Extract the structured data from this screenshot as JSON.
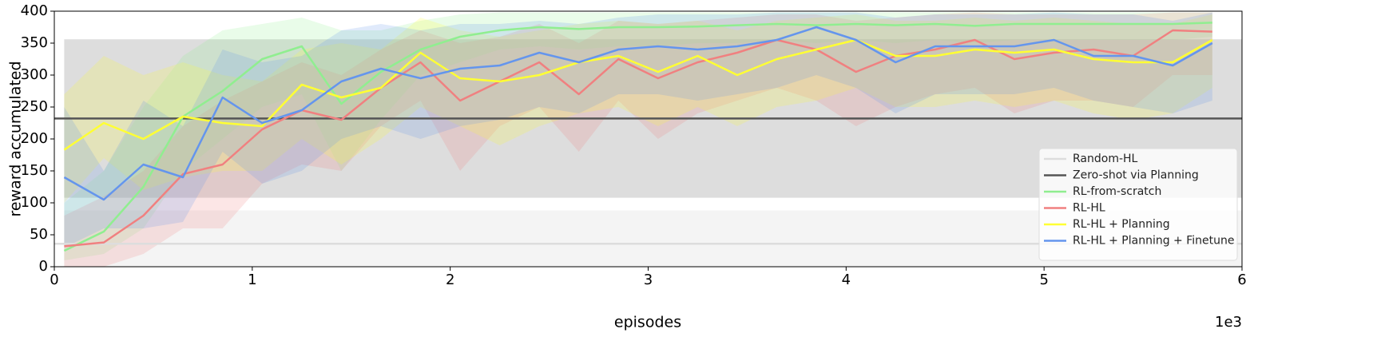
{
  "chart_data": {
    "type": "line",
    "xlabel": "episodes",
    "ylabel": "reward accumulated",
    "x_offset_label": "1e3",
    "xlim": [
      0,
      6
    ],
    "xticks": [
      0,
      1,
      2,
      3,
      4,
      5,
      6
    ],
    "ylim": [
      0,
      400
    ],
    "yticks": [
      0,
      50,
      100,
      150,
      200,
      250,
      300,
      350,
      400
    ],
    "legend": "lower right",
    "x": [
      0.05,
      0.25,
      0.45,
      0.65,
      0.85,
      1.05,
      1.25,
      1.45,
      1.65,
      1.85,
      2.05,
      2.25,
      2.45,
      2.65,
      2.85,
      3.05,
      3.25,
      3.45,
      3.65,
      3.85,
      4.05,
      4.25,
      4.45,
      4.65,
      4.85,
      5.05,
      5.25,
      5.45,
      5.65,
      5.85
    ],
    "series": [
      {
        "name": "Random-HL",
        "color": "#dddddd",
        "band_color": "#e6e6e6",
        "value": 36,
        "lower": 0,
        "upper": 88
      },
      {
        "name": "Zero-shot via Planning",
        "color": "#555555",
        "band_color": "#b4b4b4",
        "value": 232,
        "lower": 108,
        "upper": 356
      },
      {
        "name": "RL-from-scratch",
        "color": "#90ee90",
        "values": [
          25,
          55,
          125,
          235,
          275,
          325,
          345,
          255,
          305,
          340,
          360,
          370,
          375,
          372,
          375,
          375,
          376,
          378,
          380,
          378,
          380,
          378,
          380,
          377,
          380,
          380,
          380,
          380,
          380,
          382
        ],
        "lower": [
          10,
          20,
          60,
          150,
          200,
          250,
          270,
          150,
          230,
          300,
          320,
          340,
          345,
          340,
          345,
          345,
          350,
          350,
          355,
          350,
          355,
          350,
          355,
          350,
          355,
          355,
          355,
          355,
          355,
          360
        ],
        "upper": [
          100,
          150,
          250,
          330,
          370,
          380,
          390,
          370,
          370,
          385,
          395,
          398,
          398,
          398,
          398,
          398,
          398,
          398,
          398,
          398,
          398,
          398,
          398,
          398,
          398,
          398,
          398,
          398,
          398,
          398
        ]
      },
      {
        "name": "RL-HL",
        "color": "#f08080",
        "values": [
          32,
          38,
          80,
          145,
          160,
          215,
          245,
          230,
          280,
          320,
          260,
          290,
          320,
          270,
          325,
          295,
          320,
          335,
          355,
          340,
          305,
          330,
          340,
          355,
          325,
          335,
          340,
          330,
          370,
          368
        ],
        "lower": [
          0,
          0,
          20,
          60,
          60,
          130,
          160,
          150,
          220,
          260,
          150,
          220,
          250,
          180,
          260,
          200,
          240,
          260,
          280,
          260,
          220,
          250,
          270,
          280,
          240,
          260,
          260,
          250,
          300,
          300
        ],
        "upper": [
          80,
          110,
          150,
          220,
          260,
          290,
          320,
          300,
          340,
          370,
          350,
          360,
          380,
          350,
          385,
          380,
          385,
          390,
          395,
          395,
          385,
          390,
          395,
          398,
          395,
          395,
          395,
          395,
          398,
          398
        ]
      },
      {
        "name": "RL-HL + Planning",
        "color": "#ffff33",
        "values": [
          183,
          225,
          200,
          235,
          225,
          220,
          285,
          265,
          280,
          335,
          295,
          290,
          300,
          320,
          330,
          305,
          330,
          300,
          325,
          340,
          355,
          330,
          330,
          340,
          335,
          340,
          325,
          320,
          320,
          355
        ],
        "lower": [
          100,
          170,
          120,
          140,
          150,
          150,
          200,
          160,
          200,
          250,
          220,
          190,
          220,
          240,
          250,
          220,
          250,
          220,
          250,
          260,
          280,
          250,
          250,
          260,
          250,
          260,
          240,
          230,
          240,
          280
        ],
        "upper": [
          270,
          330,
          300,
          320,
          300,
          290,
          340,
          350,
          340,
          390,
          370,
          360,
          370,
          380,
          385,
          380,
          385,
          370,
          385,
          390,
          395,
          385,
          385,
          390,
          385,
          390,
          385,
          380,
          380,
          395
        ]
      },
      {
        "name": "RL-HL + Planning + Finetune",
        "color": "#6495ed",
        "values": [
          140,
          105,
          160,
          140,
          265,
          225,
          245,
          290,
          310,
          295,
          310,
          315,
          335,
          320,
          340,
          345,
          340,
          345,
          355,
          375,
          355,
          320,
          345,
          345,
          345,
          355,
          330,
          330,
          315,
          350
        ],
        "lower": [
          30,
          60,
          60,
          70,
          180,
          130,
          150,
          200,
          220,
          200,
          220,
          230,
          250,
          240,
          270,
          270,
          260,
          270,
          280,
          300,
          280,
          240,
          270,
          270,
          270,
          280,
          260,
          250,
          240,
          260
        ],
        "upper": [
          250,
          150,
          260,
          220,
          340,
          320,
          330,
          370,
          380,
          370,
          380,
          380,
          385,
          380,
          390,
          395,
          395,
          395,
          398,
          398,
          398,
          390,
          395,
          395,
          395,
          398,
          395,
          395,
          385,
          398
        ]
      }
    ]
  }
}
